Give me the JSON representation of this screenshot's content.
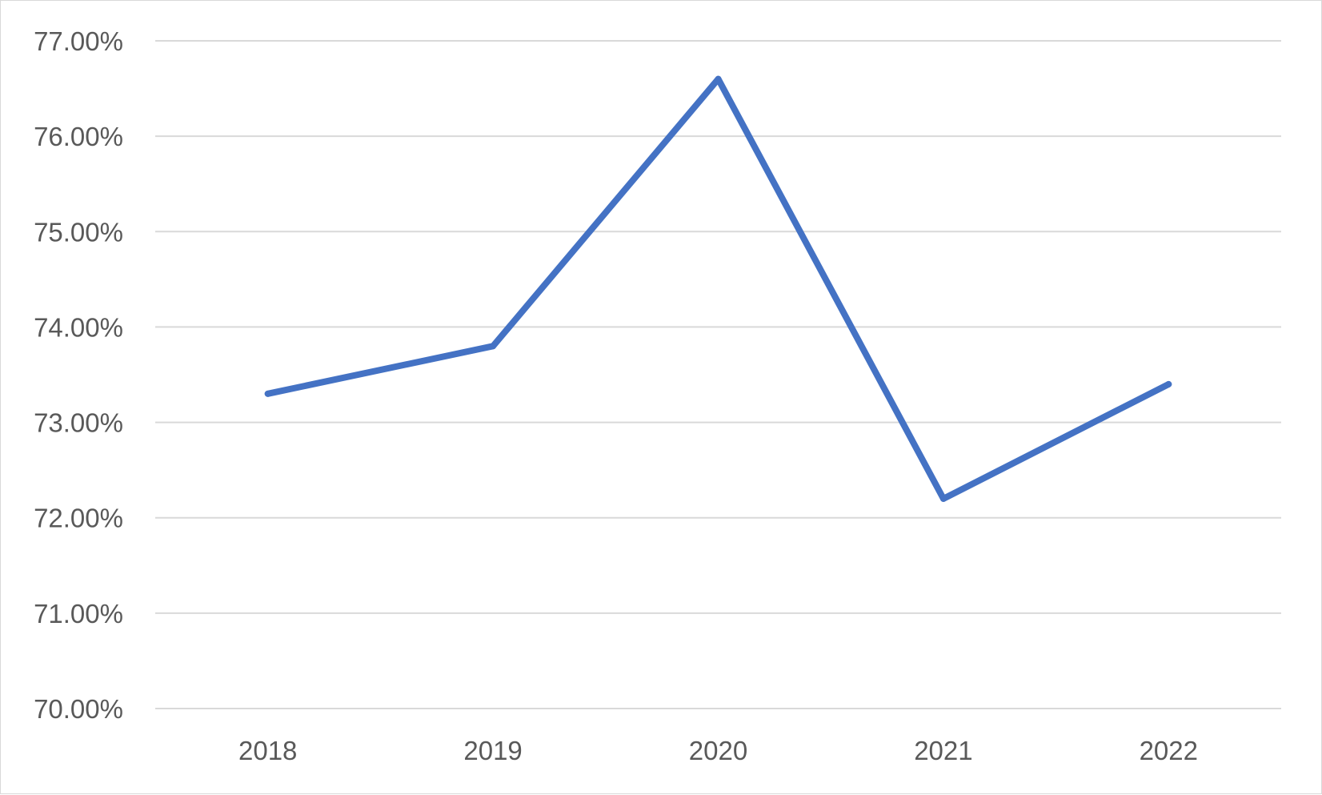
{
  "chart_data": {
    "type": "line",
    "title": "",
    "xlabel": "",
    "ylabel": "",
    "categories": [
      "2018",
      "2019",
      "2020",
      "2021",
      "2022"
    ],
    "series": [
      {
        "values": [
          73.3,
          73.8,
          76.6,
          72.2,
          73.4
        ],
        "color": "#4472c4"
      }
    ],
    "ylim": [
      70,
      77
    ],
    "yticks": [
      "70.00%",
      "71.00%",
      "72.00%",
      "73.00%",
      "74.00%",
      "75.00%",
      "76.00%",
      "77.00%"
    ],
    "grid": true,
    "legend": "none",
    "gridline_color": "#d9d9d9",
    "label_color": "#595959"
  }
}
